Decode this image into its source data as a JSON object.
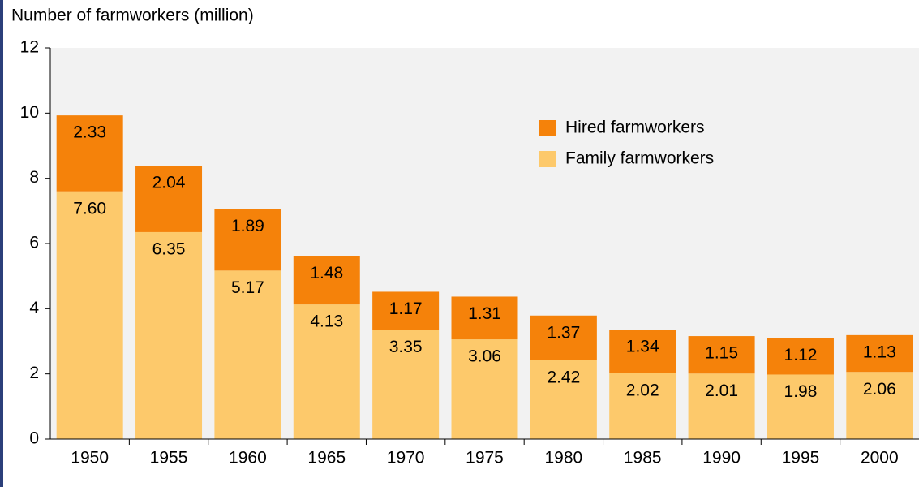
{
  "chart_data": {
    "type": "stacked_bar",
    "title": "Number of farmworkers (million)",
    "categories": [
      "1950",
      "1955",
      "1960",
      "1965",
      "1970",
      "1975",
      "1980",
      "1985",
      "1990",
      "1995",
      "2000"
    ],
    "series": [
      {
        "name": "Family farmworkers",
        "color": "#fdc96b",
        "values": [
          7.6,
          6.35,
          5.17,
          4.13,
          3.35,
          3.06,
          2.42,
          2.02,
          2.01,
          1.98,
          2.06
        ],
        "value_labels": [
          "7.60",
          "6.35",
          "5.17",
          "4.13",
          "3.35",
          "3.06",
          "2.42",
          "2.02",
          "2.01",
          "1.98",
          "2.06"
        ]
      },
      {
        "name": "Hired farmworkers",
        "color": "#f5820a",
        "values": [
          2.33,
          2.04,
          1.89,
          1.48,
          1.17,
          1.31,
          1.37,
          1.34,
          1.15,
          1.12,
          1.13
        ],
        "value_labels": [
          "2.33",
          "2.04",
          "1.89",
          "1.48",
          "1.17",
          "1.31",
          "1.37",
          "1.34",
          "1.15",
          "1.12",
          "1.13"
        ]
      }
    ],
    "ylim": [
      0,
      12
    ],
    "yticks": [
      0,
      2,
      4,
      6,
      8,
      10,
      12
    ],
    "grid": false
  }
}
